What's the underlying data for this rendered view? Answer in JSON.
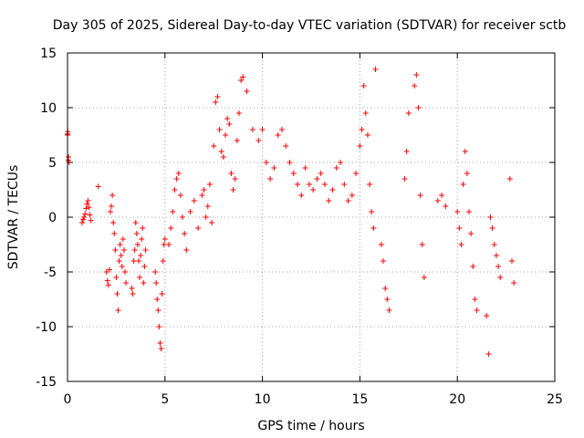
{
  "chart_data": {
    "type": "scatter",
    "title": "Day 305 of 2025, Sidereal Day-to-day VTEC variation (SDTVAR) for receiver sctb",
    "xlabel": "GPS time / hours",
    "ylabel": "SDTVAR / TECUs",
    "xlim": [
      0,
      25
    ],
    "ylim": [
      -15,
      15
    ],
    "xticks": [
      0,
      5,
      10,
      15,
      20,
      25
    ],
    "yticks": [
      -15,
      -10,
      -5,
      0,
      5,
      10,
      15
    ],
    "xtick_labels": [
      "0",
      "5",
      "10",
      "15",
      "20",
      "25"
    ],
    "ytick_labels": [
      "-15",
      "-10",
      "-5",
      "0",
      "5",
      "10",
      "15"
    ],
    "grid": true,
    "marker": "+",
    "color": "#ff0000",
    "series": [
      {
        "name": "SDTVAR",
        "x": [
          0.0,
          0.02,
          0.05,
          0.08,
          0.0,
          0.05,
          0.75,
          0.8,
          0.85,
          0.9,
          0.95,
          1.0,
          1.05,
          1.1,
          1.15,
          1.2,
          1.58,
          2.0,
          2.05,
          2.1,
          2.15,
          2.2,
          2.25,
          2.3,
          2.35,
          2.4,
          2.45,
          2.5,
          2.55,
          2.6,
          2.65,
          2.7,
          2.75,
          2.8,
          2.85,
          2.9,
          2.95,
          3.0,
          3.3,
          3.35,
          3.4,
          3.45,
          3.5,
          3.55,
          3.6,
          3.65,
          3.7,
          3.75,
          3.8,
          3.85,
          3.9,
          3.95,
          4.0,
          4.5,
          4.55,
          4.6,
          4.65,
          4.7,
          4.75,
          4.8,
          4.85,
          4.9,
          4.95,
          5.0,
          5.2,
          5.3,
          5.4,
          5.5,
          5.6,
          5.7,
          5.8,
          5.9,
          6.0,
          6.1,
          6.3,
          6.5,
          6.7,
          6.9,
          7.0,
          7.1,
          7.2,
          7.3,
          7.4,
          7.5,
          7.6,
          7.7,
          7.8,
          7.9,
          8.0,
          8.1,
          8.2,
          8.3,
          8.4,
          8.5,
          8.6,
          8.7,
          8.8,
          8.9,
          9.0,
          9.2,
          9.5,
          9.8,
          10.0,
          10.2,
          10.4,
          10.6,
          10.8,
          11.0,
          11.2,
          11.4,
          11.6,
          11.8,
          12.0,
          12.2,
          12.4,
          12.6,
          12.8,
          13.0,
          13.2,
          13.4,
          13.6,
          13.8,
          14.0,
          14.2,
          14.4,
          14.6,
          14.8,
          15.0,
          15.1,
          15.2,
          15.3,
          15.4,
          15.5,
          15.6,
          15.7,
          15.8,
          16.1,
          16.2,
          16.3,
          16.4,
          16.5,
          17.3,
          17.4,
          17.5,
          17.8,
          17.9,
          18.0,
          18.1,
          18.2,
          18.3,
          19.0,
          19.2,
          19.4,
          20.0,
          20.1,
          20.2,
          20.3,
          20.4,
          20.5,
          20.6,
          20.7,
          20.8,
          20.9,
          21.0,
          21.5,
          21.6,
          21.7,
          21.8,
          21.9,
          22.0,
          22.1,
          22.2,
          22.7,
          22.8,
          22.9
        ],
        "y": [
          7.5,
          7.8,
          5.5,
          5.0,
          7.6,
          5.2,
          -0.5,
          -0.2,
          0.0,
          0.3,
          0.8,
          1.2,
          1.5,
          0.9,
          0.2,
          -0.3,
          2.8,
          -5.0,
          -5.8,
          -6.2,
          -4.8,
          0.5,
          1.0,
          2.0,
          -0.5,
          -1.5,
          -3.0,
          -5.5,
          -7.0,
          -8.5,
          -4.0,
          -2.5,
          -3.5,
          -4.5,
          -2.0,
          -3.0,
          -5.0,
          -6.0,
          -6.5,
          -7.0,
          -4.0,
          -3.0,
          -0.5,
          -1.5,
          -2.5,
          -4.0,
          -5.5,
          -3.5,
          -2.0,
          -1.0,
          -6.0,
          -4.5,
          -3.0,
          -5.0,
          -6.0,
          -7.5,
          -8.5,
          -10.0,
          -11.5,
          -12.0,
          -7.0,
          -4.0,
          -2.5,
          -2.0,
          -2.5,
          -1.0,
          0.5,
          2.5,
          3.5,
          4.0,
          2.0,
          0.0,
          -1.5,
          -3.0,
          0.5,
          1.5,
          -1.0,
          2.0,
          2.5,
          0.0,
          1.0,
          3.0,
          -0.5,
          6.5,
          10.5,
          11.0,
          8.0,
          6.0,
          5.5,
          7.5,
          9.0,
          8.5,
          4.0,
          2.5,
          3.5,
          7.0,
          9.5,
          12.5,
          12.8,
          11.5,
          8.0,
          7.0,
          8.0,
          5.0,
          3.5,
          4.5,
          7.5,
          8.0,
          6.5,
          5.0,
          4.0,
          3.0,
          2.0,
          4.5,
          3.0,
          2.5,
          3.5,
          4.0,
          3.0,
          1.5,
          2.5,
          4.5,
          5.0,
          3.0,
          1.5,
          2.0,
          4.0,
          6.5,
          8.0,
          12.0,
          9.5,
          7.5,
          3.0,
          0.5,
          -1.0,
          13.5,
          -2.5,
          -4.0,
          -6.5,
          -7.5,
          -8.5,
          3.5,
          6.0,
          9.5,
          12.0,
          13.0,
          10.0,
          2.0,
          -2.5,
          -5.5,
          1.5,
          2.0,
          1.0,
          0.5,
          -1.0,
          -2.5,
          3.0,
          6.0,
          4.0,
          0.5,
          -1.5,
          -4.5,
          -7.5,
          -8.5,
          -9.0,
          -12.5,
          0.0,
          -1.0,
          -2.5,
          -3.5,
          -4.5,
          -5.5,
          3.5,
          -4.0,
          -6.0
        ]
      }
    ]
  }
}
